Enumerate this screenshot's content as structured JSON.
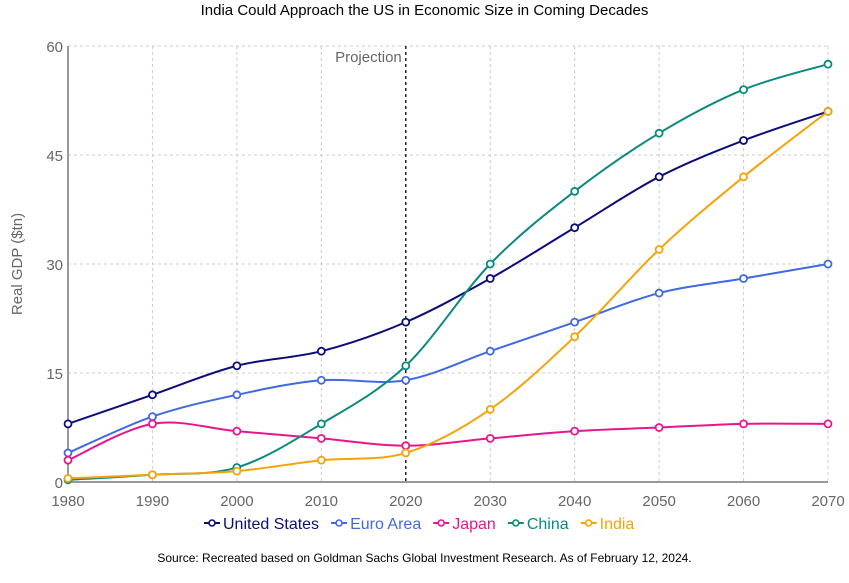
{
  "chart_data": {
    "type": "line",
    "title": "India Could Approach the US in Economic Size in Coming Decades",
    "xlabel": "",
    "ylabel": "Real GDP ($tn)",
    "x": [
      1980,
      1990,
      2000,
      2010,
      2020,
      2030,
      2040,
      2050,
      2060,
      2070
    ],
    "xlim": [
      1980,
      2070
    ],
    "ylim": [
      0,
      60
    ],
    "yticks": [
      0,
      15,
      30,
      45,
      60
    ],
    "xticks": [
      1980,
      1990,
      2000,
      2010,
      2020,
      2030,
      2040,
      2050,
      2060,
      2070
    ],
    "grid": true,
    "legend_placement": "bottom-center",
    "annotation": {
      "label": "Projection",
      "x": 2020
    },
    "series": [
      {
        "name": "United States",
        "color": "#0d0d7a",
        "values": [
          8,
          12,
          16,
          18,
          22,
          28,
          35,
          42,
          47,
          51
        ]
      },
      {
        "name": "Euro Area",
        "color": "#4169e1",
        "values": [
          4,
          9,
          12,
          14,
          14,
          18,
          22,
          26,
          28,
          30
        ]
      },
      {
        "name": "Japan",
        "color": "#e8168c",
        "values": [
          3,
          8,
          7,
          6,
          5,
          6,
          7,
          7.5,
          8,
          8
        ]
      },
      {
        "name": "China",
        "color": "#0b8a7e",
        "values": [
          0.3,
          1,
          2,
          8,
          16,
          30,
          40,
          48,
          54,
          57.5
        ]
      },
      {
        "name": "India",
        "color": "#f5a30a",
        "values": [
          0.5,
          1,
          1.5,
          3,
          4,
          10,
          20,
          32,
          42,
          51
        ]
      }
    ]
  },
  "source": "Source: Recreated based on Goldman Sachs Global Investment Research. As of February 12, 2024."
}
